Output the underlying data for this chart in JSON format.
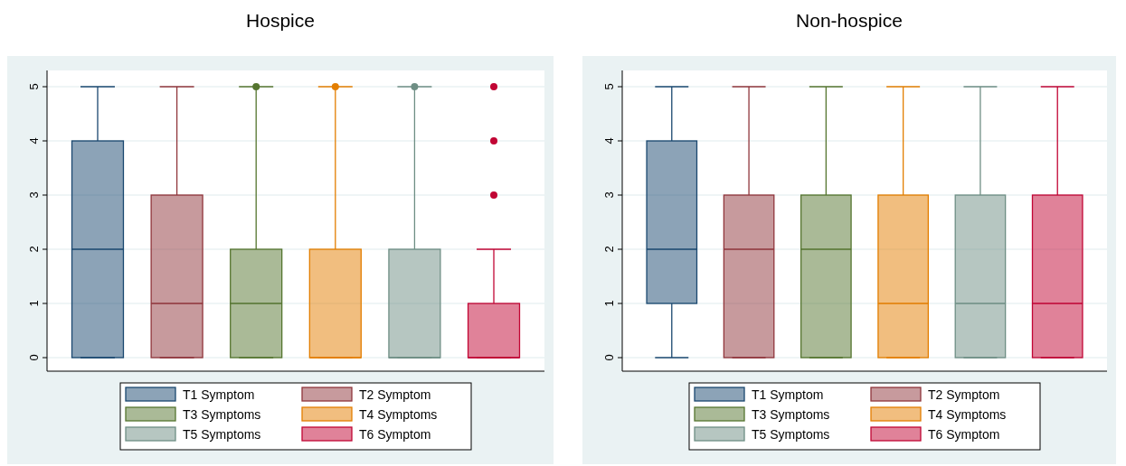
{
  "chart_data": [
    {
      "type": "box",
      "title": "Hospice",
      "categories": [
        null,
        null,
        null,
        null,
        null,
        null
      ],
      "ylim": [
        -0.25,
        5.3
      ],
      "yticks": [
        0,
        1,
        2,
        3,
        4,
        5
      ],
      "grid": "y",
      "legend": "bottom",
      "series": [
        {
          "name": "T1 Symptom",
          "color": "#1a476f",
          "boxes": [
            {
              "low": 0,
              "q1": 0,
              "median": 2,
              "q3": 4,
              "high": 5
            },
            null,
            null,
            null,
            null,
            null
          ]
        },
        {
          "name": "T2 Symptom",
          "color": "#90353b",
          "boxes": [
            null,
            {
              "low": 0,
              "q1": 0,
              "median": 1,
              "q3": 3,
              "high": 5
            },
            null,
            null,
            null,
            null
          ]
        },
        {
          "name": "T3 Symptoms",
          "color": "#55752f",
          "boxes": [
            null,
            null,
            {
              "low": 0,
              "q1": 0,
              "median": 1,
              "q3": 2,
              "high": 5,
              "outliers": [
                5
              ]
            },
            null,
            null,
            null
          ]
        },
        {
          "name": "T4 Symptoms",
          "color": "#e37e00",
          "boxes": [
            null,
            null,
            null,
            {
              "low": 0,
              "q1": 0,
              "median": 0,
              "q3": 2,
              "high": 5,
              "outliers": [
                5
              ]
            },
            null,
            null
          ]
        },
        {
          "name": "T5 Symptoms",
          "color": "#6e8e84",
          "boxes": [
            null,
            null,
            null,
            null,
            {
              "low": 0,
              "q1": 0,
              "median": 0,
              "q3": 2,
              "high": 5,
              "outliers": [
                5
              ]
            },
            null
          ]
        },
        {
          "name": "T6 Symptom",
          "color": "#c10534",
          "boxes": [
            null,
            null,
            null,
            null,
            null,
            {
              "low": 0,
              "q1": 0,
              "median": 0,
              "q3": 1,
              "high": 2,
              "outliers": [
                3,
                4,
                5
              ]
            }
          ]
        }
      ]
    },
    {
      "type": "box",
      "title": "Non-hospice",
      "categories": [
        null,
        null,
        null,
        null,
        null,
        null
      ],
      "ylim": [
        -0.25,
        5.3
      ],
      "yticks": [
        0,
        1,
        2,
        3,
        4,
        5
      ],
      "grid": "y",
      "legend": "bottom",
      "series": [
        {
          "name": "T1 Symptom",
          "color": "#1a476f",
          "boxes": [
            {
              "low": 0,
              "q1": 1,
              "median": 2,
              "q3": 4,
              "high": 5
            },
            null,
            null,
            null,
            null,
            null
          ]
        },
        {
          "name": "T2 Symptom",
          "color": "#90353b",
          "boxes": [
            null,
            {
              "low": 0,
              "q1": 0,
              "median": 2,
              "q3": 3,
              "high": 5
            },
            null,
            null,
            null,
            null
          ]
        },
        {
          "name": "T3 Symptoms",
          "color": "#55752f",
          "boxes": [
            null,
            null,
            {
              "low": 0,
              "q1": 0,
              "median": 2,
              "q3": 3,
              "high": 5
            },
            null,
            null,
            null
          ]
        },
        {
          "name": "T4 Symptoms",
          "color": "#e37e00",
          "boxes": [
            null,
            null,
            null,
            {
              "low": 0,
              "q1": 0,
              "median": 1,
              "q3": 3,
              "high": 5
            },
            null,
            null
          ]
        },
        {
          "name": "T5 Symptoms",
          "color": "#6e8e84",
          "boxes": [
            null,
            null,
            null,
            null,
            {
              "low": 0,
              "q1": 0,
              "median": 1,
              "q3": 3,
              "high": 5
            },
            null
          ]
        },
        {
          "name": "T6 Symptom",
          "color": "#c10534",
          "boxes": [
            null,
            null,
            null,
            null,
            null,
            {
              "low": 0,
              "q1": 0,
              "median": 1,
              "q3": 3,
              "high": 5
            }
          ]
        }
      ]
    }
  ]
}
